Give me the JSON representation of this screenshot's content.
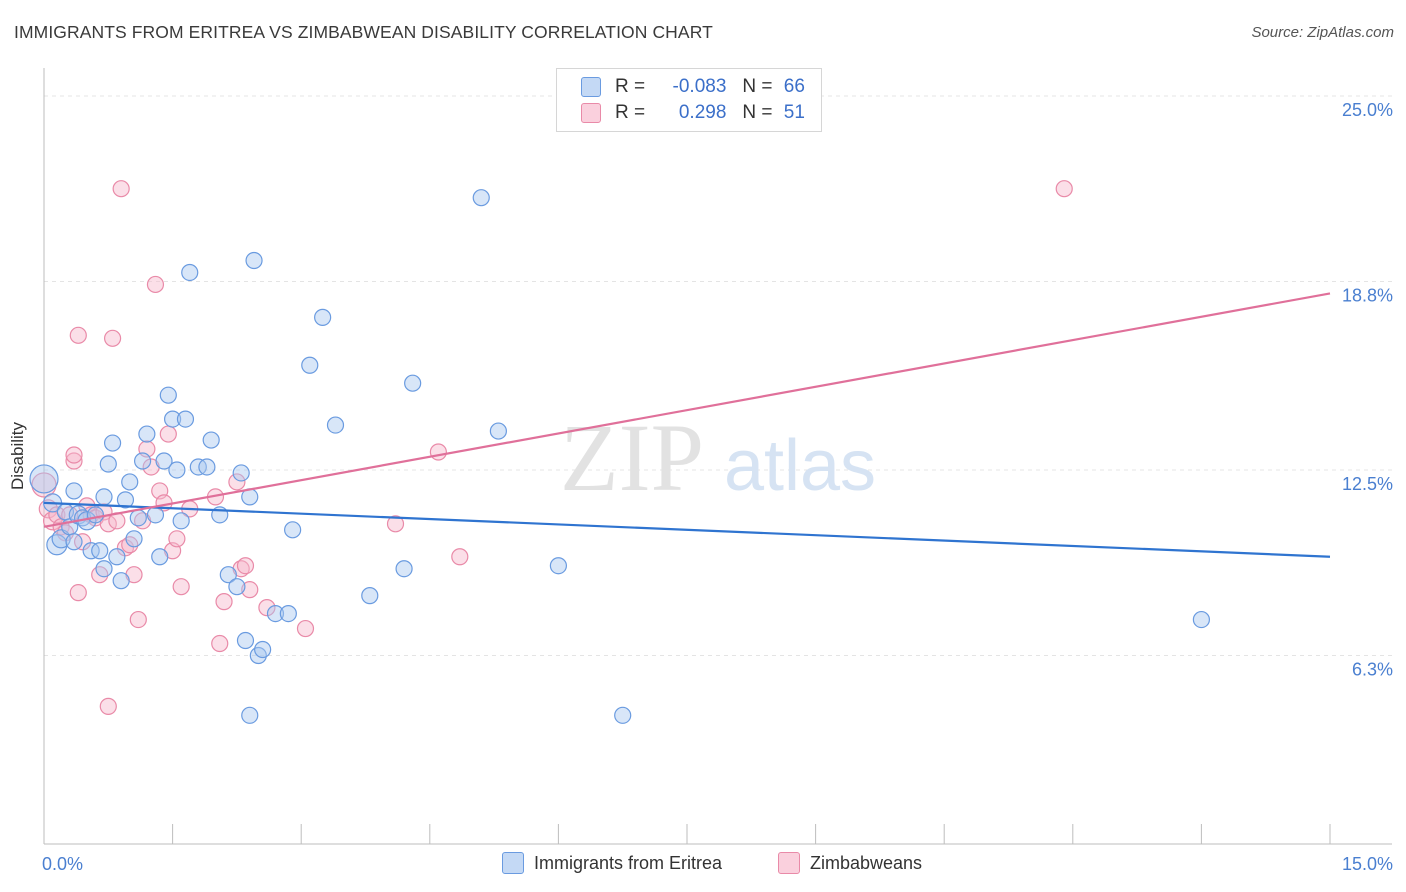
{
  "title": "IMMIGRANTS FROM ERITREA VS ZIMBABWEAN DISABILITY CORRELATION CHART",
  "source": "Source: ZipAtlas.com",
  "watermark": {
    "zip": "ZIP",
    "atlas": "atlas"
  },
  "legend": {
    "rows": [
      {
        "r_label": "R =",
        "r_value": "-0.083",
        "n_label": "N =",
        "n_value": "66"
      },
      {
        "r_label": "R =",
        "r_value": "0.298",
        "n_label": "N =",
        "n_value": "51"
      }
    ]
  },
  "colors": {
    "blue_fill": "#a9c8f0",
    "blue_stroke": "#6a9be0",
    "blue_line": "#2f74d0",
    "pink_fill": "#f7b8cb",
    "pink_stroke": "#e98aa8",
    "pink_line": "#e0709a",
    "tick_text": "#4a7fd0",
    "grid": "#e4e4e4"
  },
  "chart_data": {
    "type": "scatter",
    "title": "IMMIGRANTS FROM ERITREA VS ZIMBABWEAN DISABILITY CORRELATION CHART",
    "xlabel": "",
    "ylabel": "Disability",
    "xlim": [
      0,
      15
    ],
    "ylim": [
      0,
      25.8
    ],
    "x_tick_labels": [
      "0.0%",
      "15.0%"
    ],
    "y_ticks": [
      6.3,
      12.5,
      18.8,
      25.0
    ],
    "y_tick_labels": [
      "6.3%",
      "12.5%",
      "18.8%",
      "25.0%"
    ],
    "grid": true,
    "legend_position": "top-center",
    "series": [
      {
        "name": "Immigrants from Eritrea",
        "r": -0.083,
        "n": 66,
        "trend": {
          "x": [
            0,
            15
          ],
          "y": [
            11.4,
            9.6
          ]
        },
        "points": [
          [
            0.0,
            12.2,
            14
          ],
          [
            0.1,
            11.4,
            9
          ],
          [
            0.15,
            10.0,
            10
          ],
          [
            0.2,
            10.2,
            9
          ],
          [
            0.25,
            11.1,
            8
          ],
          [
            0.3,
            10.6,
            8
          ],
          [
            0.35,
            11.8,
            8
          ],
          [
            0.35,
            10.1,
            8
          ],
          [
            0.4,
            11.0,
            9
          ],
          [
            0.45,
            10.9,
            8
          ],
          [
            0.5,
            10.8,
            9
          ],
          [
            0.55,
            9.8,
            8
          ],
          [
            0.6,
            11.0,
            8
          ],
          [
            0.65,
            9.8,
            8
          ],
          [
            0.7,
            11.6,
            8
          ],
          [
            0.7,
            9.2,
            8
          ],
          [
            0.75,
            12.7,
            8
          ],
          [
            0.8,
            13.4,
            8
          ],
          [
            0.85,
            9.6,
            8
          ],
          [
            0.9,
            8.8,
            8
          ],
          [
            0.95,
            11.5,
            8
          ],
          [
            1.0,
            12.1,
            8
          ],
          [
            1.05,
            10.2,
            8
          ],
          [
            1.1,
            10.9,
            8
          ],
          [
            1.15,
            12.8,
            8
          ],
          [
            1.2,
            13.7,
            8
          ],
          [
            1.3,
            11.0,
            8
          ],
          [
            1.35,
            9.6,
            8
          ],
          [
            1.4,
            12.8,
            8
          ],
          [
            1.45,
            15.0,
            8
          ],
          [
            1.5,
            14.2,
            8
          ],
          [
            1.55,
            12.5,
            8
          ],
          [
            1.6,
            10.8,
            8
          ],
          [
            1.65,
            14.2,
            8
          ],
          [
            1.7,
            19.1,
            8
          ],
          [
            1.8,
            12.6,
            8
          ],
          [
            1.9,
            12.6,
            8
          ],
          [
            1.95,
            13.5,
            8
          ],
          [
            2.05,
            11.0,
            8
          ],
          [
            2.15,
            9.0,
            8
          ],
          [
            2.25,
            8.6,
            8
          ],
          [
            2.3,
            12.4,
            8
          ],
          [
            2.35,
            6.8,
            8
          ],
          [
            2.4,
            11.6,
            8
          ],
          [
            2.4,
            4.3,
            8
          ],
          [
            2.45,
            19.5,
            8
          ],
          [
            2.5,
            6.3,
            8
          ],
          [
            2.55,
            6.5,
            8
          ],
          [
            2.7,
            7.7,
            8
          ],
          [
            2.85,
            7.7,
            8
          ],
          [
            2.9,
            10.5,
            8
          ],
          [
            3.1,
            16.0,
            8
          ],
          [
            3.25,
            17.6,
            8
          ],
          [
            3.4,
            14.0,
            8
          ],
          [
            3.8,
            8.3,
            8
          ],
          [
            4.2,
            9.2,
            8
          ],
          [
            4.3,
            15.4,
            8
          ],
          [
            5.1,
            21.6,
            8
          ],
          [
            5.3,
            13.8,
            8
          ],
          [
            6.0,
            9.3,
            8
          ],
          [
            6.75,
            4.3,
            8
          ],
          [
            13.5,
            7.5,
            8
          ]
        ]
      },
      {
        "name": "Zimbabweans",
        "r": 0.298,
        "n": 51,
        "trend": {
          "x": [
            0,
            15
          ],
          "y": [
            10.6,
            18.4
          ]
        },
        "points": [
          [
            0.0,
            12.0,
            12
          ],
          [
            0.05,
            11.2,
            9
          ],
          [
            0.1,
            10.8,
            9
          ],
          [
            0.15,
            11.0,
            8
          ],
          [
            0.2,
            10.6,
            8
          ],
          [
            0.25,
            10.4,
            8
          ],
          [
            0.3,
            11.0,
            8
          ],
          [
            0.35,
            12.8,
            8
          ],
          [
            0.35,
            13.0,
            8
          ],
          [
            0.4,
            17.0,
            8
          ],
          [
            0.4,
            8.4,
            8
          ],
          [
            0.45,
            10.1,
            8
          ],
          [
            0.5,
            11.3,
            8
          ],
          [
            0.55,
            11.0,
            8
          ],
          [
            0.6,
            10.9,
            8
          ],
          [
            0.65,
            9.0,
            8
          ],
          [
            0.7,
            11.1,
            8
          ],
          [
            0.75,
            10.7,
            8
          ],
          [
            0.75,
            4.6,
            8
          ],
          [
            0.8,
            16.9,
            8
          ],
          [
            0.85,
            10.8,
            8
          ],
          [
            0.9,
            21.9,
            8
          ],
          [
            0.95,
            9.9,
            8
          ],
          [
            1.0,
            10.0,
            8
          ],
          [
            1.05,
            9.0,
            8
          ],
          [
            1.1,
            7.5,
            8
          ],
          [
            1.15,
            10.8,
            8
          ],
          [
            1.2,
            13.2,
            8
          ],
          [
            1.25,
            12.6,
            8
          ],
          [
            1.3,
            18.7,
            8
          ],
          [
            1.35,
            11.8,
            8
          ],
          [
            1.4,
            11.4,
            8
          ],
          [
            1.45,
            13.7,
            8
          ],
          [
            1.5,
            9.8,
            8
          ],
          [
            1.55,
            10.2,
            8
          ],
          [
            1.6,
            8.6,
            8
          ],
          [
            1.7,
            11.2,
            8
          ],
          [
            2.0,
            11.6,
            8
          ],
          [
            2.05,
            6.7,
            8
          ],
          [
            2.1,
            8.1,
            8
          ],
          [
            2.25,
            12.1,
            8
          ],
          [
            2.3,
            9.2,
            8
          ],
          [
            2.35,
            9.3,
            8
          ],
          [
            2.4,
            8.5,
            8
          ],
          [
            2.6,
            7.9,
            8
          ],
          [
            3.05,
            7.2,
            8
          ],
          [
            4.1,
            10.7,
            8
          ],
          [
            4.6,
            13.1,
            8
          ],
          [
            4.85,
            9.6,
            8
          ],
          [
            11.9,
            21.9,
            8
          ]
        ]
      }
    ]
  }
}
